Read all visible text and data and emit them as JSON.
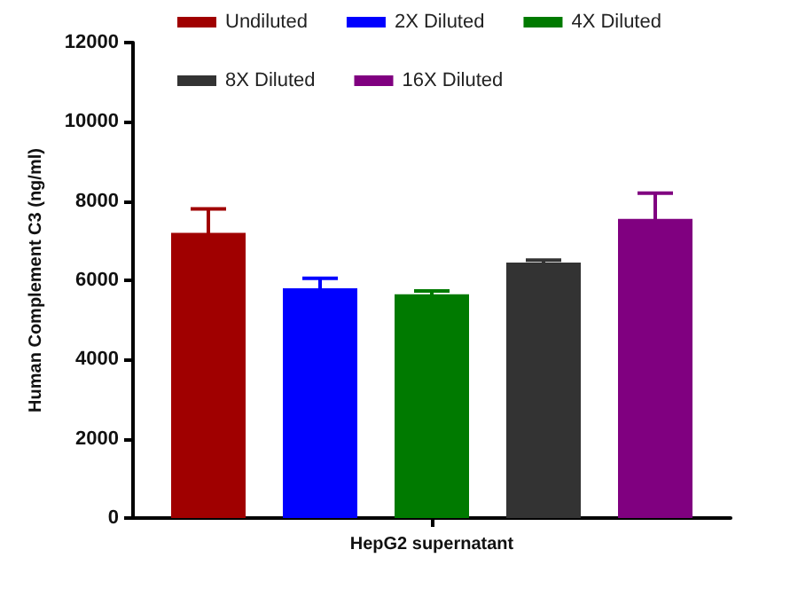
{
  "chart_data": {
    "type": "bar",
    "ylabel": "Human Complement C3 (ng/ml)",
    "categories": [
      "HepG2 supernatant"
    ],
    "series": [
      {
        "name": "Undiluted",
        "color": "#a00000",
        "values": [
          7200
        ],
        "errors": [
          600
        ]
      },
      {
        "name": "2X Diluted",
        "color": "#0000ff",
        "values": [
          5800
        ],
        "errors": [
          250
        ]
      },
      {
        "name": "4X Diluted",
        "color": "#007a00",
        "values": [
          5650
        ],
        "errors": [
          80
        ]
      },
      {
        "name": "8X Diluted",
        "color": "#333333",
        "values": [
          6450
        ],
        "errors": [
          60
        ]
      },
      {
        "name": "16X Diluted",
        "color": "#800080",
        "values": [
          7550
        ],
        "errors": [
          650
        ]
      }
    ],
    "ylim": [
      0,
      12000
    ],
    "yticks": [
      0,
      2000,
      4000,
      6000,
      8000,
      10000,
      12000
    ],
    "grid": false,
    "legend": "top"
  }
}
